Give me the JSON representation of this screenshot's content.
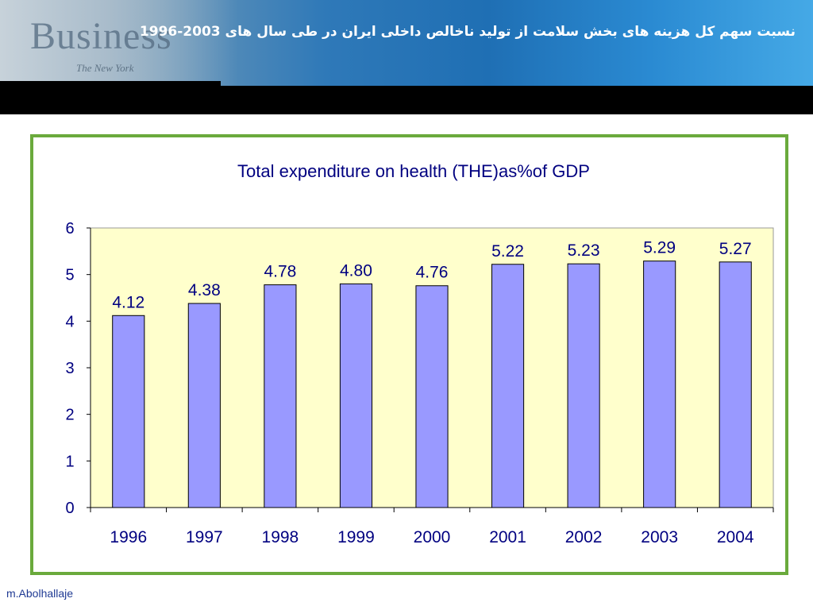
{
  "banner": {
    "title": "نسبت سهم کل هزینه های بخش سلامت از تولید ناخالص داخلی ایران در طی سال های 2003-1996",
    "logo_text": "Business",
    "logo_sub": "The New York"
  },
  "footer": {
    "credit": "m.Abolhallaje"
  },
  "colors": {
    "frame_border": "#6aaa3c",
    "plot_background": "#ffffcc",
    "bar_fill": "#9999ff",
    "text_blue": "#000080"
  },
  "chart_data": {
    "type": "bar",
    "title": "Total expenditure on health (THE)as%of GDP",
    "xlabel": "",
    "ylabel": "",
    "categories": [
      "1996",
      "1997",
      "1998",
      "1999",
      "2000",
      "2001",
      "2002",
      "2003",
      "2004"
    ],
    "values": [
      4.12,
      4.38,
      4.78,
      4.8,
      4.76,
      5.22,
      5.23,
      5.29,
      5.27
    ],
    "value_labels": [
      "4.12",
      "4.38",
      "4.78",
      "4.80",
      "4.76",
      "5.22",
      "5.23",
      "5.29",
      "5.27"
    ],
    "ylim": [
      0,
      6
    ],
    "yticks": [
      "0",
      "1",
      "2",
      "3",
      "4",
      "5",
      "6"
    ],
    "grid": false,
    "legend": "none"
  }
}
